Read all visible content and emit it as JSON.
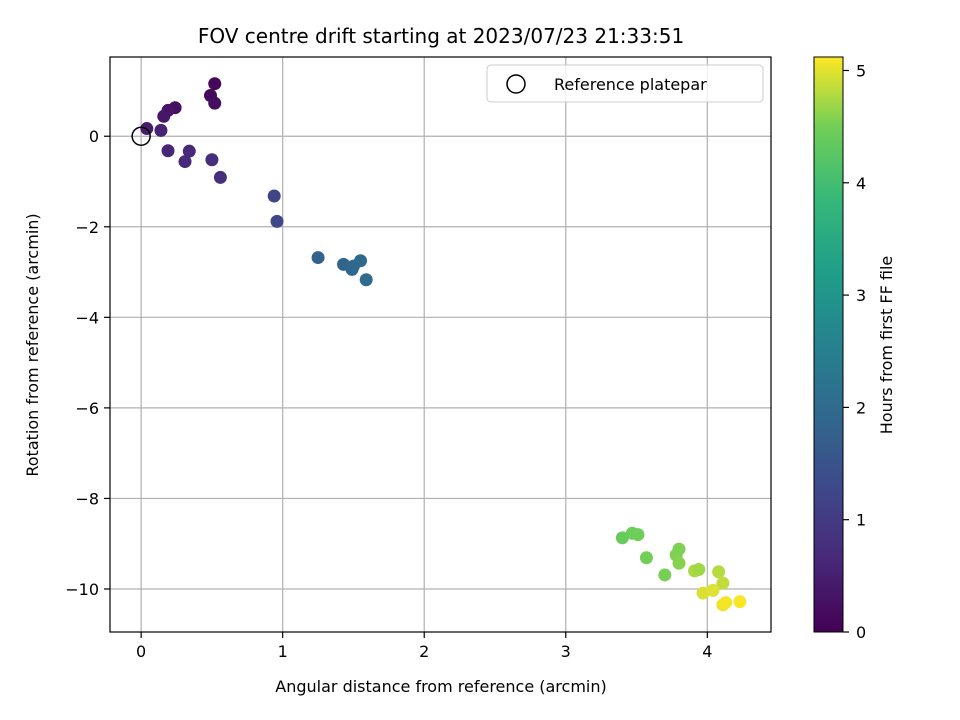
{
  "chart_data": {
    "type": "scatter",
    "title": "FOV centre drift starting at 2023/07/23 21:33:51",
    "xlabel": "Angular distance from reference (arcmin)",
    "ylabel": "Rotation from reference (arcmin)",
    "xlim": [
      -0.22,
      4.45
    ],
    "ylim": [
      -10.95,
      1.75
    ],
    "xticks": [
      0,
      1,
      2,
      3,
      4
    ],
    "yticks": [
      0,
      -2,
      -4,
      -6,
      -8,
      -10
    ],
    "xtick_labels": [
      "0",
      "1",
      "2",
      "3",
      "4"
    ],
    "ytick_labels": [
      "0",
      "−2",
      "−4",
      "−6",
      "−8",
      "−10"
    ],
    "grid": true,
    "legend": {
      "position": "top-right",
      "entries": [
        "Reference platepar"
      ]
    },
    "reference_point": {
      "x": 0,
      "y": 0
    },
    "colorbar": {
      "label": "Hours from first FF file",
      "colormap": "viridis",
      "range": [
        0,
        5.12
      ],
      "ticks": [
        0,
        1,
        2,
        3,
        4,
        5
      ],
      "tick_labels": [
        "0",
        "1",
        "2",
        "3",
        "4",
        "5"
      ]
    },
    "points": [
      {
        "x": 0.52,
        "y": 1.16,
        "c": 0.1
      },
      {
        "x": 0.49,
        "y": 0.9,
        "c": 0.15
      },
      {
        "x": 0.52,
        "y": 0.73,
        "c": 0.2
      },
      {
        "x": 0.24,
        "y": 0.63,
        "c": 0.25
      },
      {
        "x": 0.19,
        "y": 0.57,
        "c": 0.3
      },
      {
        "x": 0.16,
        "y": 0.44,
        "c": 0.35
      },
      {
        "x": 0.04,
        "y": 0.17,
        "c": 0.45
      },
      {
        "x": 0.14,
        "y": 0.13,
        "c": 0.55
      },
      {
        "x": 0.19,
        "y": -0.32,
        "c": 0.6
      },
      {
        "x": 0.34,
        "y": -0.33,
        "c": 0.65
      },
      {
        "x": 0.31,
        "y": -0.56,
        "c": 0.7
      },
      {
        "x": 0.5,
        "y": -0.52,
        "c": 0.75
      },
      {
        "x": 0.56,
        "y": -0.91,
        "c": 0.8
      },
      {
        "x": 0.94,
        "y": -1.32,
        "c": 1.2
      },
      {
        "x": 0.96,
        "y": -1.88,
        "c": 1.25
      },
      {
        "x": 1.25,
        "y": -2.68,
        "c": 1.8
      },
      {
        "x": 1.43,
        "y": -2.83,
        "c": 1.85
      },
      {
        "x": 1.49,
        "y": -2.94,
        "c": 1.9
      },
      {
        "x": 1.5,
        "y": -2.87,
        "c": 1.92
      },
      {
        "x": 1.55,
        "y": -2.75,
        "c": 1.95
      },
      {
        "x": 1.59,
        "y": -3.17,
        "c": 2.0
      },
      {
        "x": 3.4,
        "y": -8.87,
        "c": 4.4
      },
      {
        "x": 3.47,
        "y": -8.77,
        "c": 4.45
      },
      {
        "x": 3.51,
        "y": -8.8,
        "c": 4.47
      },
      {
        "x": 3.57,
        "y": -9.31,
        "c": 4.5
      },
      {
        "x": 3.7,
        "y": -9.69,
        "c": 4.52
      },
      {
        "x": 3.78,
        "y": -9.25,
        "c": 4.55
      },
      {
        "x": 3.8,
        "y": -9.12,
        "c": 4.55
      },
      {
        "x": 3.8,
        "y": -9.43,
        "c": 4.58
      },
      {
        "x": 3.91,
        "y": -9.6,
        "c": 4.75
      },
      {
        "x": 3.94,
        "y": -9.57,
        "c": 4.7
      },
      {
        "x": 4.08,
        "y": -9.62,
        "c": 4.8
      },
      {
        "x": 4.11,
        "y": -9.87,
        "c": 4.85
      },
      {
        "x": 3.97,
        "y": -10.09,
        "c": 4.95
      },
      {
        "x": 4.04,
        "y": -10.03,
        "c": 4.98
      },
      {
        "x": 4.11,
        "y": -10.35,
        "c": 5.05
      },
      {
        "x": 4.13,
        "y": -10.3,
        "c": 5.08
      },
      {
        "x": 4.23,
        "y": -10.28,
        "c": 5.1
      }
    ]
  }
}
